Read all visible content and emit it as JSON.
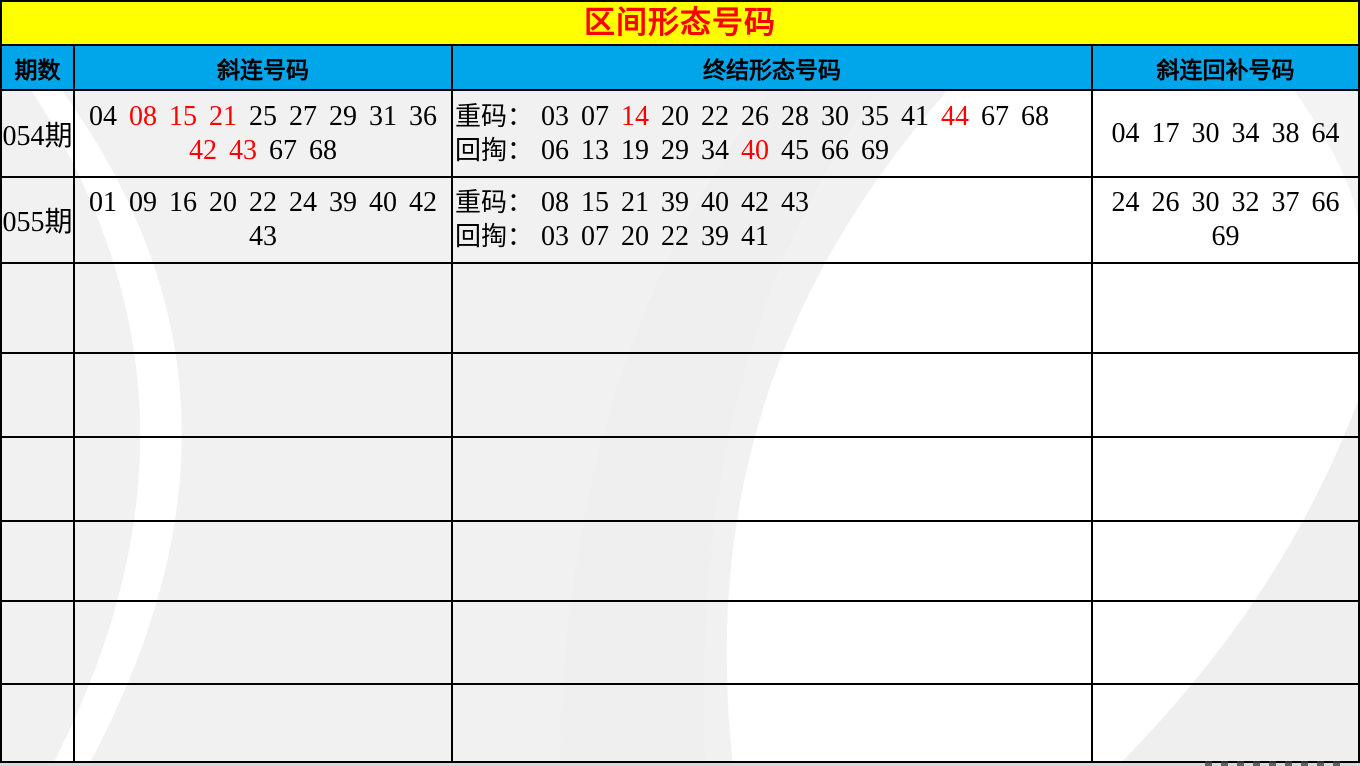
{
  "title": "区间形态号码",
  "colors": {
    "banner_bg": "#FFFF00",
    "title_text": "#FF0000",
    "header_bg": "#00A6E9",
    "highlight": "#FF0000",
    "body_text": "#000000"
  },
  "header": {
    "columns": [
      "期数",
      "斜连号码",
      "终结形态号码",
      "斜连回补号码"
    ]
  },
  "labels": {
    "repeat": "重码：",
    "back": "回掏："
  },
  "rows": [
    {
      "period": "054期",
      "diagonal_lines": [
        [
          {
            "n": "04"
          },
          {
            "n": "08",
            "red": true
          },
          {
            "n": "15",
            "red": true
          },
          {
            "n": "21",
            "red": true
          },
          {
            "n": "25"
          },
          {
            "n": "27"
          },
          {
            "n": "29"
          },
          {
            "n": "31"
          },
          {
            "n": "36"
          }
        ],
        [
          {
            "n": "42",
            "red": true
          },
          {
            "n": "43",
            "red": true
          },
          {
            "n": "67"
          },
          {
            "n": "68"
          }
        ]
      ],
      "terminal": {
        "repeat": [
          {
            "n": "03"
          },
          {
            "n": "07"
          },
          {
            "n": "14",
            "red": true
          },
          {
            "n": "20"
          },
          {
            "n": "22"
          },
          {
            "n": "26"
          },
          {
            "n": "28"
          },
          {
            "n": "30"
          },
          {
            "n": "35"
          },
          {
            "n": "41"
          },
          {
            "n": "44",
            "red": true
          },
          {
            "n": "67"
          },
          {
            "n": "68"
          }
        ],
        "back": [
          {
            "n": "06"
          },
          {
            "n": "13"
          },
          {
            "n": "19"
          },
          {
            "n": "29"
          },
          {
            "n": "34"
          },
          {
            "n": "40",
            "red": true
          },
          {
            "n": "45"
          },
          {
            "n": "66"
          },
          {
            "n": "69"
          }
        ]
      },
      "refill_lines": [
        [
          {
            "n": "04"
          },
          {
            "n": "17"
          },
          {
            "n": "30"
          },
          {
            "n": "34"
          },
          {
            "n": "38"
          },
          {
            "n": "64"
          }
        ]
      ]
    },
    {
      "period": "055期",
      "diagonal_lines": [
        [
          {
            "n": "01"
          },
          {
            "n": "09"
          },
          {
            "n": "16"
          },
          {
            "n": "20"
          },
          {
            "n": "22"
          },
          {
            "n": "24"
          },
          {
            "n": "39"
          },
          {
            "n": "40"
          },
          {
            "n": "42"
          }
        ],
        [
          {
            "n": "43"
          }
        ]
      ],
      "terminal": {
        "repeat": [
          {
            "n": "08"
          },
          {
            "n": "15"
          },
          {
            "n": "21"
          },
          {
            "n": "39"
          },
          {
            "n": "40"
          },
          {
            "n": "42"
          },
          {
            "n": "43"
          }
        ],
        "back": [
          {
            "n": "03"
          },
          {
            "n": "07"
          },
          {
            "n": "20"
          },
          {
            "n": "22"
          },
          {
            "n": "39"
          },
          {
            "n": "41"
          }
        ]
      },
      "refill_lines": [
        [
          {
            "n": "24"
          },
          {
            "n": "26"
          },
          {
            "n": "30"
          },
          {
            "n": "32"
          },
          {
            "n": "37"
          },
          {
            "n": "66"
          }
        ],
        [
          {
            "n": "69"
          }
        ]
      ]
    }
  ],
  "empty_rows": 6
}
